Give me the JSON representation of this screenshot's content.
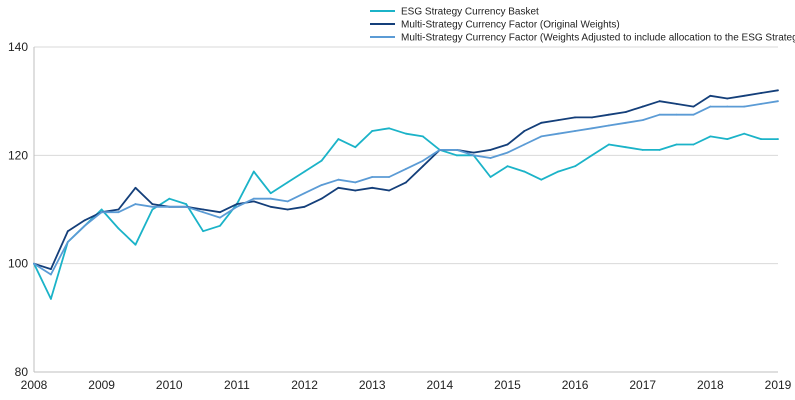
{
  "chart_data": {
    "type": "line",
    "title": "",
    "xlabel": "",
    "ylabel": "",
    "xlim": [
      2008,
      2019
    ],
    "ylim": [
      80,
      140
    ],
    "x_ticks": [
      "2008",
      "2009",
      "2010",
      "2011",
      "2012",
      "2013",
      "2014",
      "2015",
      "2016",
      "2017",
      "2018",
      "2019"
    ],
    "y_ticks": [
      "80",
      "100",
      "120",
      "140"
    ],
    "grid": "horizontal",
    "legend_position": "top",
    "x": [
      2008.0,
      2008.25,
      2008.5,
      2008.75,
      2009.0,
      2009.25,
      2009.5,
      2009.75,
      2010.0,
      2010.25,
      2010.5,
      2010.75,
      2011.0,
      2011.25,
      2011.5,
      2011.75,
      2012.0,
      2012.25,
      2012.5,
      2012.75,
      2013.0,
      2013.25,
      2013.5,
      2013.75,
      2014.0,
      2014.25,
      2014.5,
      2014.75,
      2015.0,
      2015.25,
      2015.5,
      2015.75,
      2016.0,
      2016.25,
      2016.5,
      2016.75,
      2017.0,
      2017.25,
      2017.5,
      2017.75,
      2018.0,
      2018.25,
      2018.5,
      2018.75,
      2019.0
    ],
    "series": [
      {
        "name": "ESG Strategy Currency Basket",
        "color": "#1bb3c8",
        "values": [
          100,
          93.5,
          104,
          107,
          110,
          106.5,
          103.5,
          110,
          112,
          111,
          106,
          107,
          111,
          117,
          113,
          115,
          117,
          119,
          123,
          121.5,
          124.5,
          125,
          124,
          123.5,
          121,
          120,
          120,
          116,
          118,
          117,
          115.5,
          117,
          118,
          120,
          122,
          121.5,
          121,
          121,
          122,
          122,
          123.5,
          123,
          124,
          123,
          123
        ]
      },
      {
        "name": "Multi-Strategy Currency Factor (Original Weights)",
        "color": "#143f7a",
        "values": [
          100,
          99,
          106,
          108,
          109.5,
          110,
          114,
          111,
          110.5,
          110.5,
          110,
          109.5,
          111,
          111.5,
          110.5,
          110,
          110.5,
          112,
          114,
          113.5,
          114,
          113.5,
          115,
          118,
          121,
          121,
          120.5,
          121,
          122,
          124.5,
          126,
          126.5,
          127,
          127,
          127.5,
          128,
          129,
          130,
          129.5,
          129,
          131,
          130.5,
          131,
          131.5,
          132
        ]
      },
      {
        "name": "Multi-Strategy Currency Factor (Weights Adjusted to include allocation to the ESG Strategy)",
        "color": "#5b9bd5",
        "values": [
          100,
          98,
          104,
          107,
          109.5,
          109.5,
          111,
          110.5,
          110.5,
          110.5,
          109.5,
          108.5,
          110.5,
          112,
          112,
          111.5,
          113,
          114.5,
          115.5,
          115,
          116,
          116,
          117.5,
          119,
          121,
          121,
          120,
          119.5,
          120.5,
          122,
          123.5,
          124,
          124.5,
          125,
          125.5,
          126,
          126.5,
          127.5,
          127.5,
          127.5,
          129,
          129,
          129,
          129.5,
          130
        ]
      }
    ]
  }
}
